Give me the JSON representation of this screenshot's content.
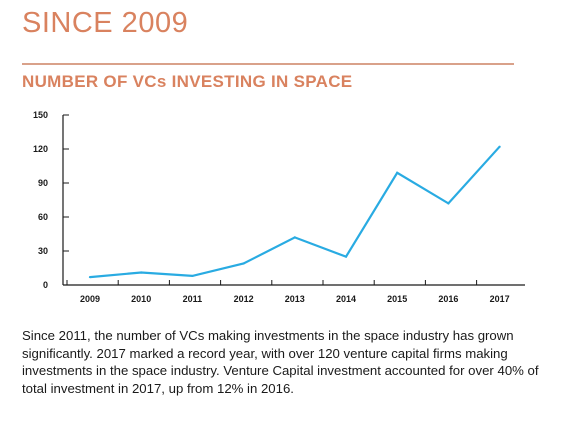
{
  "page": {
    "heading": "SINCE 2009",
    "paragraph": "Since 2011, the number of VCs making investments in the space industry has grown significantly. 2017 marked a record year, with over 120 venture capital firms making investments in the space industry. Venture Capital investment accounted for over 40% of total investment in 2017,  up from 12% in 2016."
  },
  "colors": {
    "accent": "#d9825f",
    "line": "#29abe2",
    "axis": "#1a1a1a"
  },
  "chart_data": {
    "type": "line",
    "title": "NUMBER OF VCs INVESTING IN SPACE",
    "xlabel": "",
    "ylabel": "",
    "categories": [
      "2009",
      "2010",
      "2011",
      "2012",
      "2013",
      "2014",
      "2015",
      "2016",
      "2017"
    ],
    "values": [
      7,
      11,
      8,
      19,
      42,
      25,
      99,
      72,
      122
    ],
    "ylim": [
      0,
      150
    ],
    "yticks": [
      0,
      30,
      60,
      90,
      120,
      150
    ],
    "grid": false,
    "legend": "none"
  }
}
